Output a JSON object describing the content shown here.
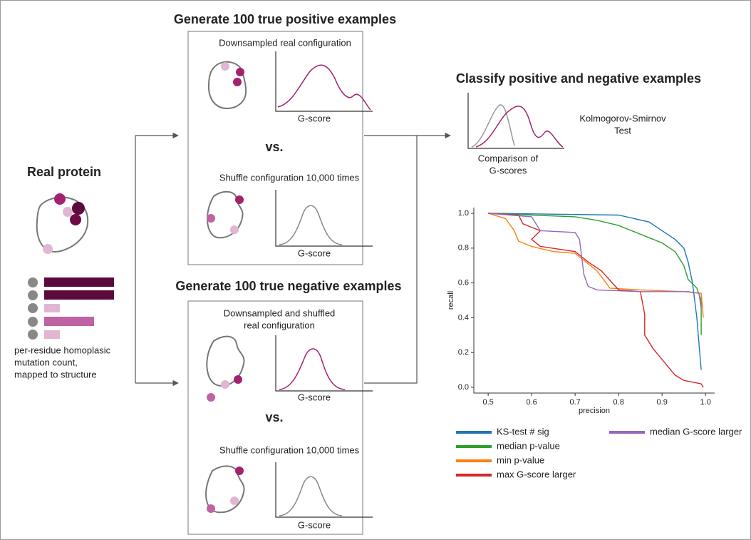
{
  "real_protein": {
    "title": "Real protein",
    "caption_lines": [
      "per-residue homoplasic",
      "mutation count,",
      "mapped to structure"
    ]
  },
  "positive": {
    "title": "Generate 100 true positive examples",
    "top": {
      "label_lines": [
        "Downsampled real configuration"
      ],
      "axis_label": "G-score"
    },
    "vs": "vs.",
    "bottom": {
      "label_lines": [
        "Shuffle configuration 10,000 times"
      ],
      "axis_label": "G-score"
    }
  },
  "negative": {
    "title": "Generate 100 true negative examples",
    "top": {
      "label_lines": [
        "Downsampled and shuffled",
        "real configuration"
      ],
      "axis_label": "G-score"
    },
    "vs": "vs.",
    "bottom": {
      "label_lines": [
        "Shuffle configuration 10,000 times"
      ],
      "axis_label": "G-score"
    }
  },
  "classify": {
    "title": "Classify positive and negative examples",
    "comparison_lines": [
      "Comparison of",
      "G-scores"
    ],
    "test_lines": [
      "Kolmogorov-Smirnov",
      "Test"
    ]
  },
  "chart_data": {
    "type": "line",
    "xlabel": "precision",
    "ylabel": "recall",
    "xlim": [
      0.467,
      1.021
    ],
    "ylim": [
      -0.033,
      1.033
    ],
    "xticks": [
      0.5,
      0.6,
      0.7,
      0.8,
      0.9,
      {
        "value": 1,
        "label": "1.0"
      }
    ],
    "yticks": [
      {
        "value": 0,
        "label": "0.0"
      },
      0.2,
      0.4,
      0.6,
      0.8,
      {
        "value": 1,
        "label": "1.0"
      }
    ],
    "series": [
      {
        "name": "KS-test # sig",
        "color": "#1f77b4",
        "x": [
          0.5,
          0.8,
          0.87,
          0.9,
          0.93,
          0.95,
          0.96,
          0.97,
          0.975,
          0.98,
          0.985,
          0.99
        ],
        "y": [
          1.0,
          0.99,
          0.95,
          0.9,
          0.85,
          0.8,
          0.72,
          0.6,
          0.5,
          0.4,
          0.25,
          0.1
        ]
      },
      {
        "name": "median p-value",
        "color": "#2ca02c",
        "x": [
          0.5,
          0.6,
          0.7,
          0.75,
          0.8,
          0.85,
          0.9,
          0.93,
          0.95,
          0.96,
          0.98,
          0.99,
          0.99
        ],
        "y": [
          1.0,
          0.99,
          0.98,
          0.96,
          0.93,
          0.88,
          0.83,
          0.78,
          0.7,
          0.62,
          0.57,
          0.5,
          0.3
        ]
      },
      {
        "name": "min p-value",
        "color": "#ff7f0e",
        "x": [
          0.5,
          0.54,
          0.56,
          0.57,
          0.6,
          0.65,
          0.7,
          0.72,
          0.75,
          0.78,
          0.85,
          0.95,
          0.99,
          0.995
        ],
        "y": [
          1.0,
          0.97,
          0.9,
          0.84,
          0.81,
          0.78,
          0.77,
          0.73,
          0.67,
          0.57,
          0.56,
          0.55,
          0.54,
          0.4
        ]
      },
      {
        "name": "max G-score larger",
        "color": "#d62728",
        "x": [
          0.5,
          0.57,
          0.58,
          0.6,
          0.62,
          0.6,
          0.62,
          0.7,
          0.73,
          0.76,
          0.8,
          0.85,
          0.86,
          0.86,
          0.88,
          0.9,
          0.93,
          0.95,
          0.99,
          0.995
        ],
        "y": [
          1.0,
          0.99,
          0.94,
          0.92,
          0.9,
          0.85,
          0.81,
          0.78,
          0.72,
          0.67,
          0.56,
          0.55,
          0.42,
          0.3,
          0.22,
          0.16,
          0.07,
          0.04,
          0.02,
          0.0
        ]
      },
      {
        "name": "median G-score larger",
        "color": "#9467bd",
        "x": [
          0.5,
          0.6,
          0.62,
          0.7,
          0.71,
          0.72,
          0.73,
          0.75,
          0.85,
          0.96,
          0.985,
          0.99
        ],
        "y": [
          1.0,
          0.98,
          0.9,
          0.89,
          0.85,
          0.65,
          0.58,
          0.56,
          0.55,
          0.55,
          0.54,
          0.45
        ]
      }
    ]
  }
}
